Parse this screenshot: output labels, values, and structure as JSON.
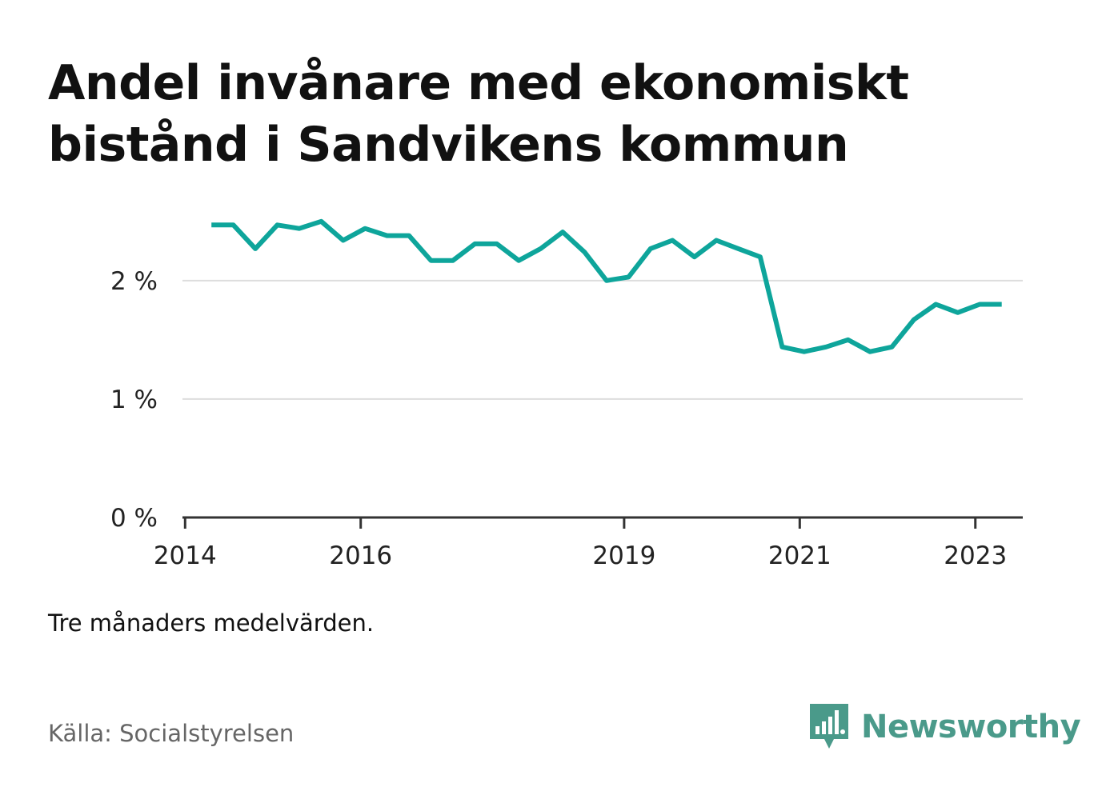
{
  "title": "Andel invånare med ekonomiskt bistånd i Sandvikens kommun",
  "note": "Tre månaders medelvärden.",
  "source": "Källa: Socialstyrelsen",
  "brand": {
    "name": "Newsworthy",
    "icon": "bar-chart-speech-bubble-icon",
    "color": "#4a9a8a"
  },
  "colors": {
    "line": "#0ea59b",
    "grid": "#dddddd",
    "axis": "#333333"
  },
  "chart_data": {
    "type": "line",
    "title": "Andel invånare med ekonomiskt bistånd i Sandvikens kommun",
    "xlabel": "",
    "ylabel": "",
    "x_ticks": [
      {
        "label": "2014",
        "value": 2014.0
      },
      {
        "label": "2016",
        "value": 2016.0
      },
      {
        "label": "2019",
        "value": 2019.0
      },
      {
        "label": "2021",
        "value": 2021.0
      },
      {
        "label": "2023",
        "value": 2023.0
      }
    ],
    "y_ticks": [
      {
        "label": "0 %",
        "value": 0
      },
      {
        "label": "1 %",
        "value": 1
      },
      {
        "label": "2 %",
        "value": 2
      }
    ],
    "xlim": [
      2013.97,
      2023.54
    ],
    "ylim": [
      0,
      2.6
    ],
    "grid": true,
    "legend": "none",
    "series": [
      {
        "x": [
          2014.3,
          2014.55,
          2014.8,
          2015.05,
          2015.3,
          2015.55,
          2015.8,
          2016.05,
          2016.3,
          2016.55,
          2016.8,
          2017.05,
          2017.3,
          2017.55,
          2017.8,
          2018.05,
          2018.3,
          2018.55,
          2018.8,
          2019.05,
          2019.3,
          2019.55,
          2019.8,
          2020.05,
          2020.3,
          2020.55,
          2020.8,
          2021.05,
          2021.3,
          2021.55,
          2021.8,
          2022.05,
          2022.3,
          2022.55,
          2022.8,
          2023.05,
          2023.3
        ],
        "values": [
          2.47,
          2.47,
          2.27,
          2.47,
          2.44,
          2.5,
          2.34,
          2.44,
          2.38,
          2.38,
          2.17,
          2.17,
          2.31,
          2.31,
          2.17,
          2.27,
          2.41,
          2.24,
          2.0,
          2.03,
          2.27,
          2.34,
          2.2,
          2.34,
          2.27,
          2.2,
          1.44,
          1.4,
          1.44,
          1.5,
          1.4,
          1.44,
          1.67,
          1.8,
          1.73,
          1.8,
          1.8
        ]
      }
    ]
  }
}
